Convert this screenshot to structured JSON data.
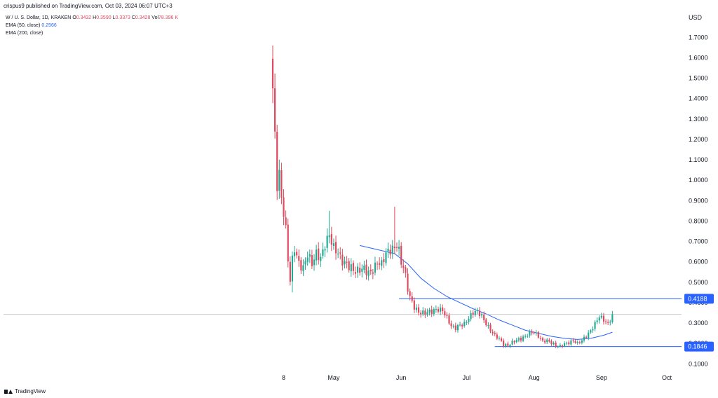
{
  "header": {
    "published": "crispus9 published on TradingView.com, Oct 03, 2024 06:07 UTC+3"
  },
  "legend": {
    "symbol": "W / U. S. Dollar, 1D, KRAKEN",
    "o_label": "O",
    "o_value": "0.3432",
    "h_label": "H",
    "h_value": "0.3590",
    "l_label": "L",
    "l_value": "0.3373",
    "c_label": "C",
    "c_value": "0.3428",
    "vol_label": "Vol",
    "vol_value": "78.396 K",
    "ema50_label": "EMA (50, close)",
    "ema50_value": "0.2566",
    "ema200_label": "EMA (200, close)"
  },
  "currency": "USD",
  "footer": {
    "brand": "TradingView"
  },
  "colors": {
    "up": "#22ab94",
    "down": "#e0485d",
    "ema": "#2962ff",
    "level": "#2962ff"
  },
  "chart_data": {
    "type": "candlestick",
    "title": "",
    "ylabel": "USD",
    "ylim": [
      0.07,
      1.78
    ],
    "yticks": [
      0.1,
      0.2,
      0.3,
      0.4,
      0.5,
      0.6,
      0.7,
      0.8,
      0.9,
      1.0,
      1.1,
      1.2,
      1.3,
      1.4,
      1.5,
      1.6,
      1.7
    ],
    "ytick_labels": [
      "0.1000",
      "0.2000",
      "0.3000",
      "0.4000",
      "0.5000",
      "0.6000",
      "0.7000",
      "0.8000",
      "0.9000",
      "1.0000",
      "1.1000",
      "1.2000",
      "1.3000",
      "1.4000",
      "1.5000",
      "1.6000",
      "1.7000"
    ],
    "xtick_labels": [
      {
        "label": "8",
        "date": "2024-04-08"
      },
      {
        "label": "May",
        "date": "2024-05-01"
      },
      {
        "label": "Jun",
        "date": "2024-06-01"
      },
      {
        "label": "Jul",
        "date": "2024-07-01"
      },
      {
        "label": "Aug",
        "date": "2024-08-01"
      },
      {
        "label": "Sep",
        "date": "2024-09-01"
      },
      {
        "label": "Oct",
        "date": "2024-10-01"
      }
    ],
    "first_date": "2024-04-03",
    "last_close": 0.3428,
    "price_path": [
      [
        0,
        1.45
      ],
      [
        1,
        1.22
      ],
      [
        2,
        1.0
      ],
      [
        3,
        1.05
      ],
      [
        4,
        0.92
      ],
      [
        5,
        0.85
      ],
      [
        6,
        0.75
      ],
      [
        7,
        0.6
      ],
      [
        8,
        0.5
      ],
      [
        9,
        0.6
      ],
      [
        10,
        0.66
      ],
      [
        12,
        0.6
      ],
      [
        14,
        0.58
      ],
      [
        16,
        0.64
      ],
      [
        18,
        0.58
      ],
      [
        20,
        0.63
      ],
      [
        22,
        0.62
      ],
      [
        24,
        0.7
      ],
      [
        26,
        0.74
      ],
      [
        28,
        0.66
      ],
      [
        30,
        0.63
      ],
      [
        32,
        0.6
      ],
      [
        34,
        0.6
      ],
      [
        36,
        0.58
      ],
      [
        38,
        0.55
      ],
      [
        40,
        0.55
      ],
      [
        42,
        0.56
      ],
      [
        44,
        0.55
      ],
      [
        46,
        0.57
      ],
      [
        48,
        0.6
      ],
      [
        50,
        0.58
      ],
      [
        52,
        0.63
      ],
      [
        54,
        0.66
      ],
      [
        56,
        0.68
      ],
      [
        57,
        0.7
      ],
      [
        58,
        0.66
      ],
      [
        59,
        0.6
      ],
      [
        60,
        0.57
      ],
      [
        61,
        0.52
      ],
      [
        62,
        0.46
      ],
      [
        63,
        0.42
      ],
      [
        65,
        0.38
      ],
      [
        67,
        0.36
      ],
      [
        70,
        0.35
      ],
      [
        73,
        0.35
      ],
      [
        76,
        0.37
      ],
      [
        78,
        0.37
      ],
      [
        80,
        0.33
      ],
      [
        82,
        0.28
      ],
      [
        84,
        0.27
      ],
      [
        86,
        0.29
      ],
      [
        88,
        0.3
      ],
      [
        90,
        0.33
      ],
      [
        92,
        0.35
      ],
      [
        94,
        0.35
      ],
      [
        96,
        0.33
      ],
      [
        98,
        0.3
      ],
      [
        100,
        0.27
      ],
      [
        102,
        0.24
      ],
      [
        104,
        0.22
      ],
      [
        106,
        0.19
      ],
      [
        108,
        0.19
      ],
      [
        110,
        0.21
      ],
      [
        112,
        0.22
      ],
      [
        114,
        0.22
      ],
      [
        116,
        0.23
      ],
      [
        118,
        0.25
      ],
      [
        120,
        0.26
      ],
      [
        122,
        0.24
      ],
      [
        124,
        0.21
      ],
      [
        126,
        0.21
      ],
      [
        128,
        0.2
      ],
      [
        130,
        0.19
      ],
      [
        132,
        0.19
      ],
      [
        134,
        0.2
      ],
      [
        136,
        0.2
      ],
      [
        138,
        0.21
      ],
      [
        140,
        0.2
      ],
      [
        142,
        0.22
      ],
      [
        144,
        0.24
      ],
      [
        146,
        0.26
      ],
      [
        148,
        0.29
      ],
      [
        150,
        0.33
      ],
      [
        152,
        0.32
      ],
      [
        154,
        0.3
      ],
      [
        156,
        0.3428
      ]
    ],
    "spikes": [
      {
        "day": 0,
        "high": 1.66
      },
      {
        "day": 26,
        "high": 0.85
      },
      {
        "day": 56,
        "high": 0.87
      },
      {
        "day": 9,
        "low": 0.45
      }
    ],
    "ema50": [
      [
        40,
        0.68
      ],
      [
        50,
        0.655
      ],
      [
        56,
        0.64
      ],
      [
        62,
        0.59
      ],
      [
        68,
        0.52
      ],
      [
        74,
        0.47
      ],
      [
        80,
        0.43
      ],
      [
        86,
        0.4
      ],
      [
        92,
        0.37
      ],
      [
        98,
        0.345
      ],
      [
        104,
        0.315
      ],
      [
        110,
        0.29
      ],
      [
        116,
        0.265
      ],
      [
        122,
        0.25
      ],
      [
        128,
        0.235
      ],
      [
        134,
        0.225
      ],
      [
        140,
        0.22
      ],
      [
        146,
        0.225
      ],
      [
        152,
        0.24
      ],
      [
        156,
        0.255
      ]
    ],
    "levels": [
      {
        "value": 0.4188,
        "label": "0.4188",
        "from_day": 58
      },
      {
        "value": 0.1846,
        "label": "0.1846",
        "from_day": 102
      }
    ],
    "last_price_value": 0.3428
  }
}
